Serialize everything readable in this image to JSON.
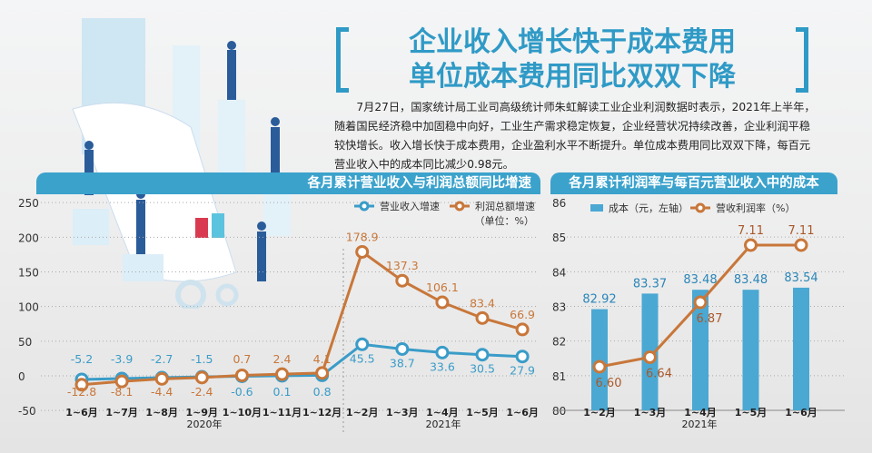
{
  "header": {
    "title_line1": "企业收入增长快于成本费用",
    "title_line2": "单位成本费用同比双双下降",
    "intro": "7月27日，国家统计局工业司高级统计师朱虹解读工业企业利润数据时表示，2021年上半年，随着国民经济稳中加固稳中向好，工业生产需求稳定恢复，企业经营状况持续改善，企业利润平稳较快增长。收入增长快于成本费用，企业盈利水平不断提升。单位成本费用同比双双下降，每百元营业收入中的成本同比减少0.98元。"
  },
  "colors": {
    "accent": "#3ba2cc",
    "revenue": "#3a9cc8",
    "profit": "#c8773a",
    "bar": "#4aa8d3"
  },
  "chart_data": [
    {
      "type": "line",
      "title": "各月累计营业收入与利润总额同比增速",
      "unit": "（单位：%）",
      "categories": [
        "1~6月",
        "1~7月",
        "1~8月",
        "1~9月",
        "1~10月",
        "1~11月",
        "1~12月",
        "1~2月",
        "1~3月",
        "1~4月",
        "1~5月",
        "1~6月"
      ],
      "year_groups": [
        {
          "label": "2020年",
          "count": 7
        },
        {
          "label": "2021年",
          "count": 5
        }
      ],
      "ylim": [
        -50,
        250
      ],
      "yticks": [
        -50,
        0,
        50,
        100,
        150,
        200,
        250
      ],
      "grid": true,
      "legend": "top-right",
      "series": [
        {
          "name": "营业收入增速",
          "values": [
            -5.2,
            -3.9,
            -2.7,
            -1.5,
            -0.6,
            0.1,
            0.8,
            45.5,
            38.7,
            33.6,
            30.5,
            27.9
          ]
        },
        {
          "name": "利润总额增速",
          "values": [
            -12.8,
            -8.1,
            -4.4,
            -2.4,
            0.7,
            2.4,
            4.1,
            178.9,
            137.3,
            106.1,
            83.4,
            66.9
          ]
        }
      ]
    },
    {
      "type": "bar+line",
      "title": "各月累计利润率与每百元营业收入中的成本",
      "categories": [
        "1~2月",
        "1~3月",
        "1~4月",
        "1~5月",
        "1~6月"
      ],
      "year_label": "2021年",
      "ylim": [
        80,
        86
      ],
      "yticks": [
        80,
        81,
        82,
        83,
        84,
        85,
        86
      ],
      "grid": true,
      "legend": "top",
      "series": [
        {
          "name": "成本（元，左轴）",
          "type": "bar",
          "values": [
            82.92,
            83.37,
            83.48,
            83.48,
            83.54
          ]
        },
        {
          "name": "营收利润率（%）",
          "type": "line",
          "values": [
            6.6,
            6.64,
            6.87,
            7.11,
            7.11
          ]
        }
      ]
    }
  ]
}
